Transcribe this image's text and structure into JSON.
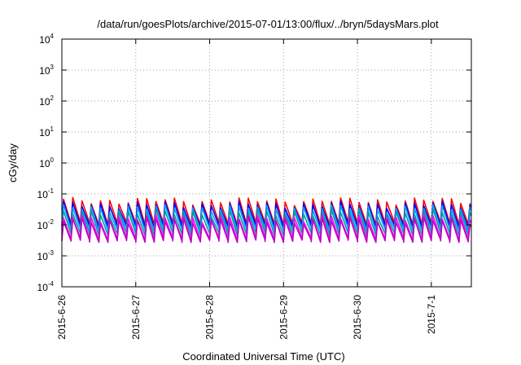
{
  "chart_data": {
    "type": "line",
    "title": "/data/run/goesPlots/archive/2015-07-01/13:00/flux/../bryn/5daysMars.plot",
    "xlabel": "Coordinated Universal Time (UTC)",
    "ylabel": "cGy/day",
    "yscale": "log",
    "ylim": [
      0.0001,
      10000
    ],
    "xlim": [
      "2015-06-26T00:00",
      "2015-07-01T13:00"
    ],
    "grid": true,
    "legend": "none",
    "x_tick_labels": [
      "2015-6-26",
      "2015-6-27",
      "2015-6-28",
      "2015-6-29",
      "2015-6-30",
      "2015-7-1"
    ],
    "y_ticks": [
      {
        "base": "10",
        "exp": "4"
      },
      {
        "base": "10",
        "exp": "3"
      },
      {
        "base": "10",
        "exp": "2"
      },
      {
        "base": "10",
        "exp": "1"
      },
      {
        "base": "10",
        "exp": "0"
      },
      {
        "base": "10",
        "exp": "-1"
      },
      {
        "base": "10",
        "exp": "-2"
      },
      {
        "base": "10",
        "exp": "-3"
      },
      {
        "base": "10",
        "exp": "-4"
      }
    ],
    "cycle_hours": 3,
    "series": [
      {
        "color": "#ff0000",
        "peak": 0.06,
        "trough": 0.011
      },
      {
        "color": "#0000ff",
        "peak": 0.045,
        "trough": 0.009
      },
      {
        "color": "#00a0ff",
        "peak": 0.035,
        "trough": 0.007
      },
      {
        "color": "#00a0a0",
        "peak": 0.025,
        "trough": 0.005
      },
      {
        "color": "#ff00ff",
        "peak": 0.017,
        "trough": 0.0035
      },
      {
        "color": "#c000c0",
        "peak": 0.014,
        "trough": 0.003
      }
    ]
  }
}
